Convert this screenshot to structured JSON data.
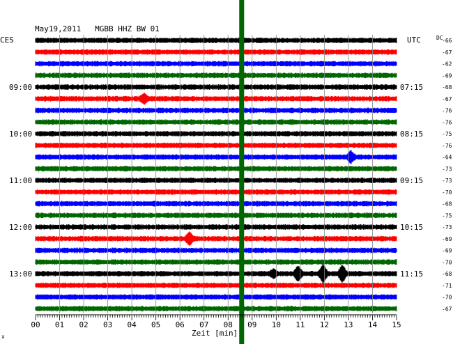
{
  "chart_data": {
    "type": "line",
    "title": "May19,2011   MGBB HHZ BW 01",
    "left_header": "CES",
    "right_header": "UTC",
    "dc_header": "DC",
    "xlabel": "Zeit [min]",
    "x_ticks": [
      "00",
      "01",
      "02",
      "03",
      "04",
      "05",
      "06",
      "07",
      "08",
      "09",
      "10",
      "11",
      "12",
      "13",
      "14",
      "15"
    ],
    "xlim": [
      0,
      15
    ],
    "trace_colors": [
      "#000000",
      "#ff0000",
      "#0000ff",
      "#006600"
    ],
    "marker_color": "#006600",
    "marker_minute": 8.55,
    "local_time_labels": [
      {
        "trace": 4,
        "text": "09:00"
      },
      {
        "trace": 8,
        "text": "10:00"
      },
      {
        "trace": 12,
        "text": "11:00"
      },
      {
        "trace": 16,
        "text": "12:00"
      },
      {
        "trace": 20,
        "text": "13:00"
      }
    ],
    "utc_labels": [
      {
        "trace": 4,
        "text": "07:15"
      },
      {
        "trace": 8,
        "text": "08:15"
      },
      {
        "trace": 12,
        "text": "09:15"
      },
      {
        "trace": 16,
        "text": "10:15"
      },
      {
        "trace": 20,
        "text": "11:15"
      }
    ],
    "dc_offsets": [
      "-66",
      "-67",
      "-62",
      "-69",
      "-68",
      "-67",
      "-76",
      "-76",
      "-75",
      "-76",
      "-64",
      "-73",
      "-73",
      "-70",
      "-68",
      "-75",
      "-73",
      "-69",
      "-69",
      "-70",
      "-68",
      "-71",
      "-70",
      "-67"
    ],
    "events": [
      {
        "trace": 5,
        "minute": 4.5,
        "amp": 2.4
      },
      {
        "trace": 10,
        "minute": 13.1,
        "amp": 3.0
      },
      {
        "trace": 17,
        "minute": 6.4,
        "amp": 3.2
      },
      {
        "trace": 20,
        "minute": 10.9,
        "amp": 4.0
      },
      {
        "trace": 20,
        "minute": 11.95,
        "amp": 5.0
      },
      {
        "trace": 20,
        "minute": 12.75,
        "amp": 4.5
      },
      {
        "trace": 20,
        "minute": 9.9,
        "amp": 2.0
      }
    ],
    "footer_mark": "x"
  }
}
